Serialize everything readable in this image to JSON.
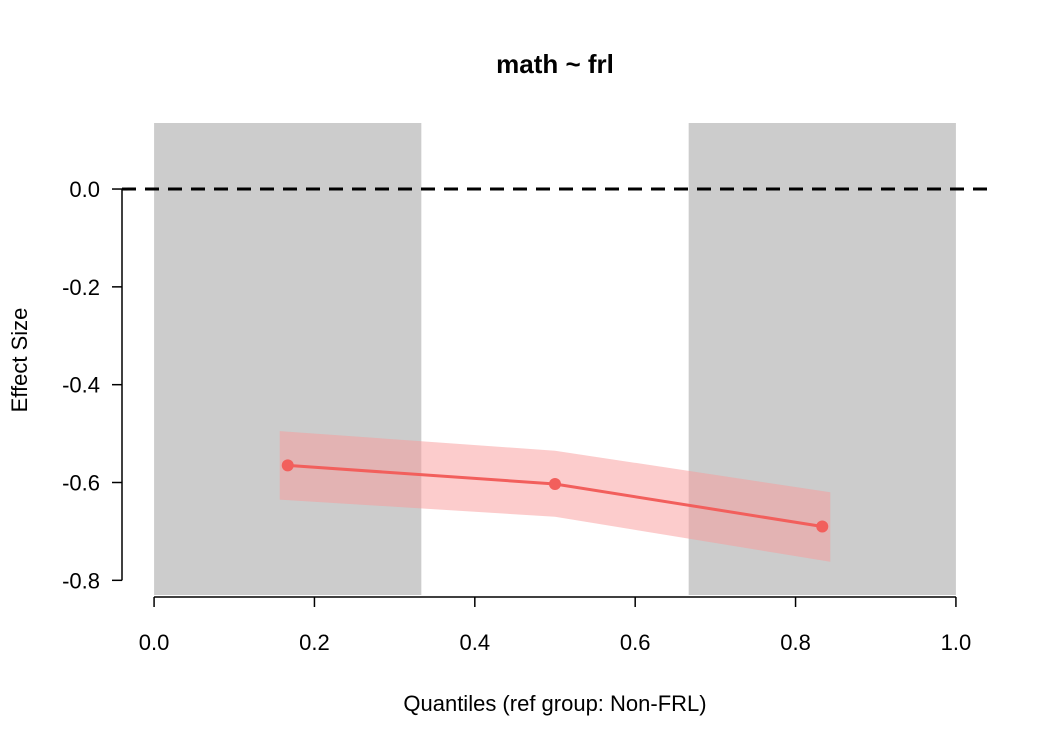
{
  "chart_data": {
    "type": "line",
    "title": "math ~ frl",
    "xlabel": "Quantiles (ref group: Non-FRL)",
    "ylabel": "Effect Size",
    "xlim": [
      -0.04,
      1.04
    ],
    "ylim": [
      -0.83,
      0.135
    ],
    "x_ticks": [
      0.0,
      0.2,
      0.4,
      0.6,
      0.8,
      1.0
    ],
    "x_tick_labels": [
      "0.0",
      "0.2",
      "0.4",
      "0.6",
      "0.8",
      "1.0"
    ],
    "y_ticks": [
      0.0,
      -0.2,
      -0.4,
      -0.6,
      -0.8
    ],
    "y_tick_labels": [
      "0.0",
      "-0.2",
      "-0.4",
      "-0.6",
      "-0.8"
    ],
    "reference_line": {
      "y": 0.0,
      "style": "dashed"
    },
    "shaded_regions": [
      {
        "x": [
          0.0,
          0.3333
        ]
      },
      {
        "x": [
          0.6667,
          1.0
        ]
      }
    ],
    "series": [
      {
        "x": [
          0.1667,
          0.5,
          0.8333
        ],
        "values": [
          -0.565,
          -0.603,
          -0.69
        ],
        "band": {
          "x": [
            0.1567,
            0.5,
            0.8433
          ],
          "upper": [
            -0.495,
            -0.535,
            -0.62
          ],
          "lower": [
            -0.635,
            -0.67,
            -0.762
          ]
        }
      }
    ],
    "colors": {
      "line": "#f25f5c",
      "band": "#fa9a9a",
      "shade": "#cccccc"
    },
    "grid": false
  }
}
